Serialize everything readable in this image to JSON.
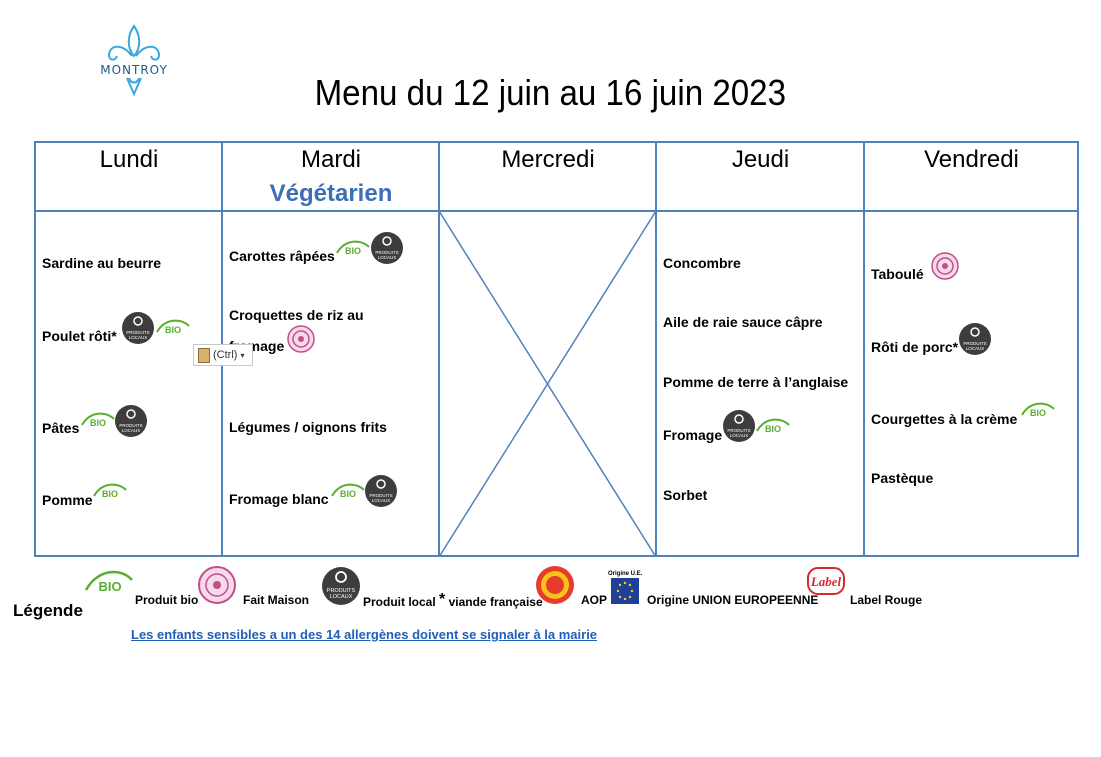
{
  "logo": {
    "name": "MONTROY"
  },
  "title": "Menu du 12 juin au 16 juin 2023",
  "days": [
    {
      "name": "Lundi"
    },
    {
      "name": "Mardi",
      "subtitle": "Végétarien"
    },
    {
      "name": "Mercredi"
    },
    {
      "name": "Jeudi"
    },
    {
      "name": "Vendredi"
    }
  ],
  "lundi": [
    "Sardine au beurre",
    "Poulet rôti*",
    "Pâtes",
    "Pomme"
  ],
  "mardi": [
    "Carottes râpées",
    "Croquettes de riz au fromage",
    "Légumes / oignons frits",
    "Fromage blanc"
  ],
  "jeudi": [
    "Concombre",
    "Aile de raie sauce câpre",
    "Pomme de terre à l’anglaise",
    "Fromage",
    "Sorbet"
  ],
  "vendredi": [
    "Taboulé",
    "Rôti de porc*",
    "Courgettes à la crème",
    "Pastèque"
  ],
  "paste_tooltip": "(Ctrl)",
  "badges": {
    "bio": "BIO",
    "local_line1": "PRODUITS",
    "local_line2": "LOCAUX",
    "eu_caption": "Origine U.E.",
    "label_rouge": "Label"
  },
  "legend": {
    "title": "Légende",
    "bio": "Produit bio",
    "fait_maison": "Fait Maison",
    "local_a": "Produit local",
    "star": "*",
    "local_b": "viande française",
    "aop": "AOP",
    "ue": "Origine UNION EUROPEENNE",
    "label_rouge": "Label Rouge"
  },
  "allergy_notice": "Les enfants sensibles a un des 14 allergènes doivent se signaler à la mairie",
  "colors": {
    "grid": "#4f81bd",
    "subtitle": "#3b6fb6",
    "link": "#1f5fb8",
    "bio_green": "#5aae2e",
    "local_dark": "#3d3d3d",
    "fait_maison": "#c0508a"
  }
}
